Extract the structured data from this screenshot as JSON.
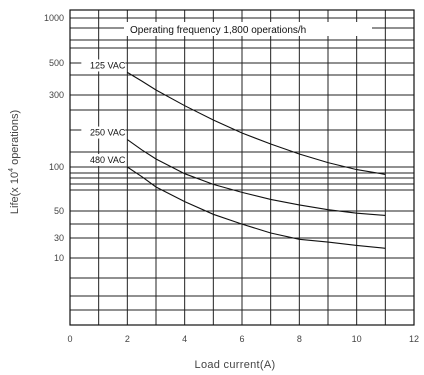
{
  "chart_data": {
    "type": "line",
    "xlabel": "Load current(A)",
    "ylabel_pre": "Life(x 10",
    "ylabel_exp": "4",
    "ylabel_post": " operations)",
    "annotation": "Operating frequency 1,800 operations/h",
    "xlim": [
      0,
      12
    ],
    "x_ticks": [
      "0",
      "2",
      "4",
      "6",
      "8",
      "10",
      "12"
    ],
    "y_ticks": [
      "1000",
      "500",
      "300",
      "100",
      "50",
      "30",
      "10"
    ],
    "grid": true,
    "series": [
      {
        "name": "125 VAC",
        "x": [
          2.0,
          2.5,
          3,
          4,
          5,
          6,
          7,
          8,
          9,
          10,
          11
        ],
        "y": [
          430,
          375,
          325,
          255,
          205,
          168,
          142,
          122,
          107,
          96,
          89
        ]
      },
      {
        "name": "250 VAC",
        "x": [
          2.0,
          2.5,
          3,
          4,
          5,
          6,
          7,
          8,
          9,
          10,
          11
        ],
        "y": [
          152,
          130,
          113,
          90,
          76,
          67,
          60,
          55,
          51,
          48,
          46
        ]
      },
      {
        "name": "480 VAC",
        "x": [
          2.0,
          2.5,
          3,
          4,
          5,
          6,
          7,
          8,
          9,
          10,
          11
        ],
        "y": [
          100,
          86,
          73,
          58,
          47,
          39,
          33,
          28,
          24,
          20,
          17
        ]
      }
    ]
  }
}
